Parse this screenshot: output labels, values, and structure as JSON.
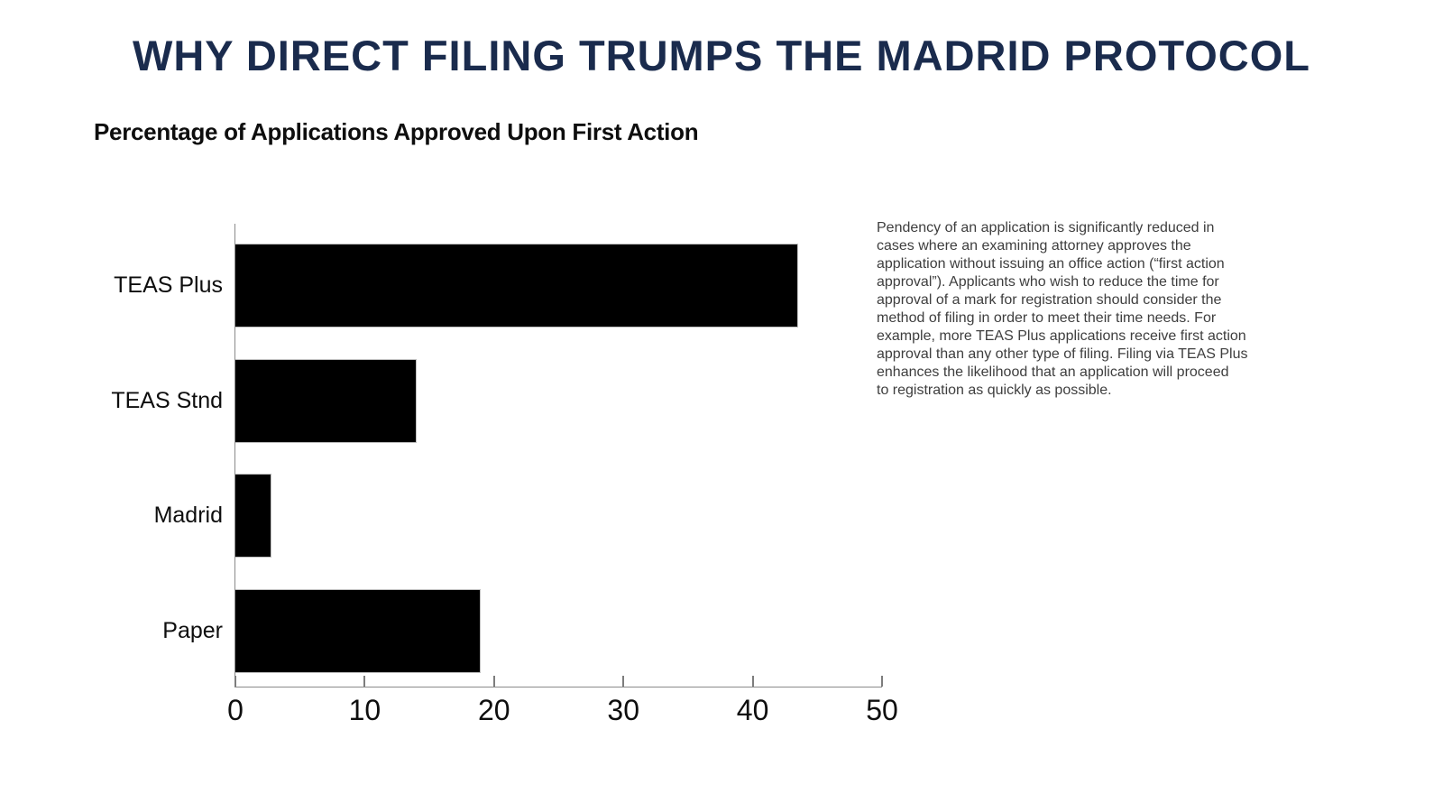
{
  "header": {
    "title": "WHY DIRECT FILING TRUMPS THE MADRID PROTOCOL",
    "subtitle": "Percentage of Applications Approved Upon First Action"
  },
  "chart_data": {
    "type": "bar",
    "orientation": "horizontal",
    "title": "Percentage of Applications Approved Upon First Action",
    "categories": [
      "TEAS Plus",
      "TEAS Stnd",
      "Madrid",
      "Paper"
    ],
    "values": [
      43.5,
      14,
      2.8,
      19
    ],
    "unit": "%",
    "xlabel": "",
    "ylabel": "",
    "xlim": [
      0,
      50
    ],
    "x_ticks": [
      0,
      10,
      20,
      30,
      40,
      50
    ],
    "grid": false,
    "legend": false,
    "bar_color": "#000000",
    "axis_color": "#8a8a8a"
  },
  "annotation": {
    "text": "Pendency of an application is significantly reduced in\ncases where an examining attorney approves the\napplication without issuing an office action (“first action\napproval”). Applicants who wish to reduce the time for\napproval of a mark for registration should consider the\nmethod of filing in order to meet their time needs. For\nexample, more TEAS Plus applications receive first action\napproval than any other type of filing. Filing via TEAS Plus\nenhances the likelihood that an application will proceed\nto registration as quickly as possible."
  },
  "colors": {
    "title_navy": "#1a2b4d",
    "body_text": "#3e3e3e",
    "bar_black": "#040404",
    "axis_gray": "#8a8a8a"
  }
}
